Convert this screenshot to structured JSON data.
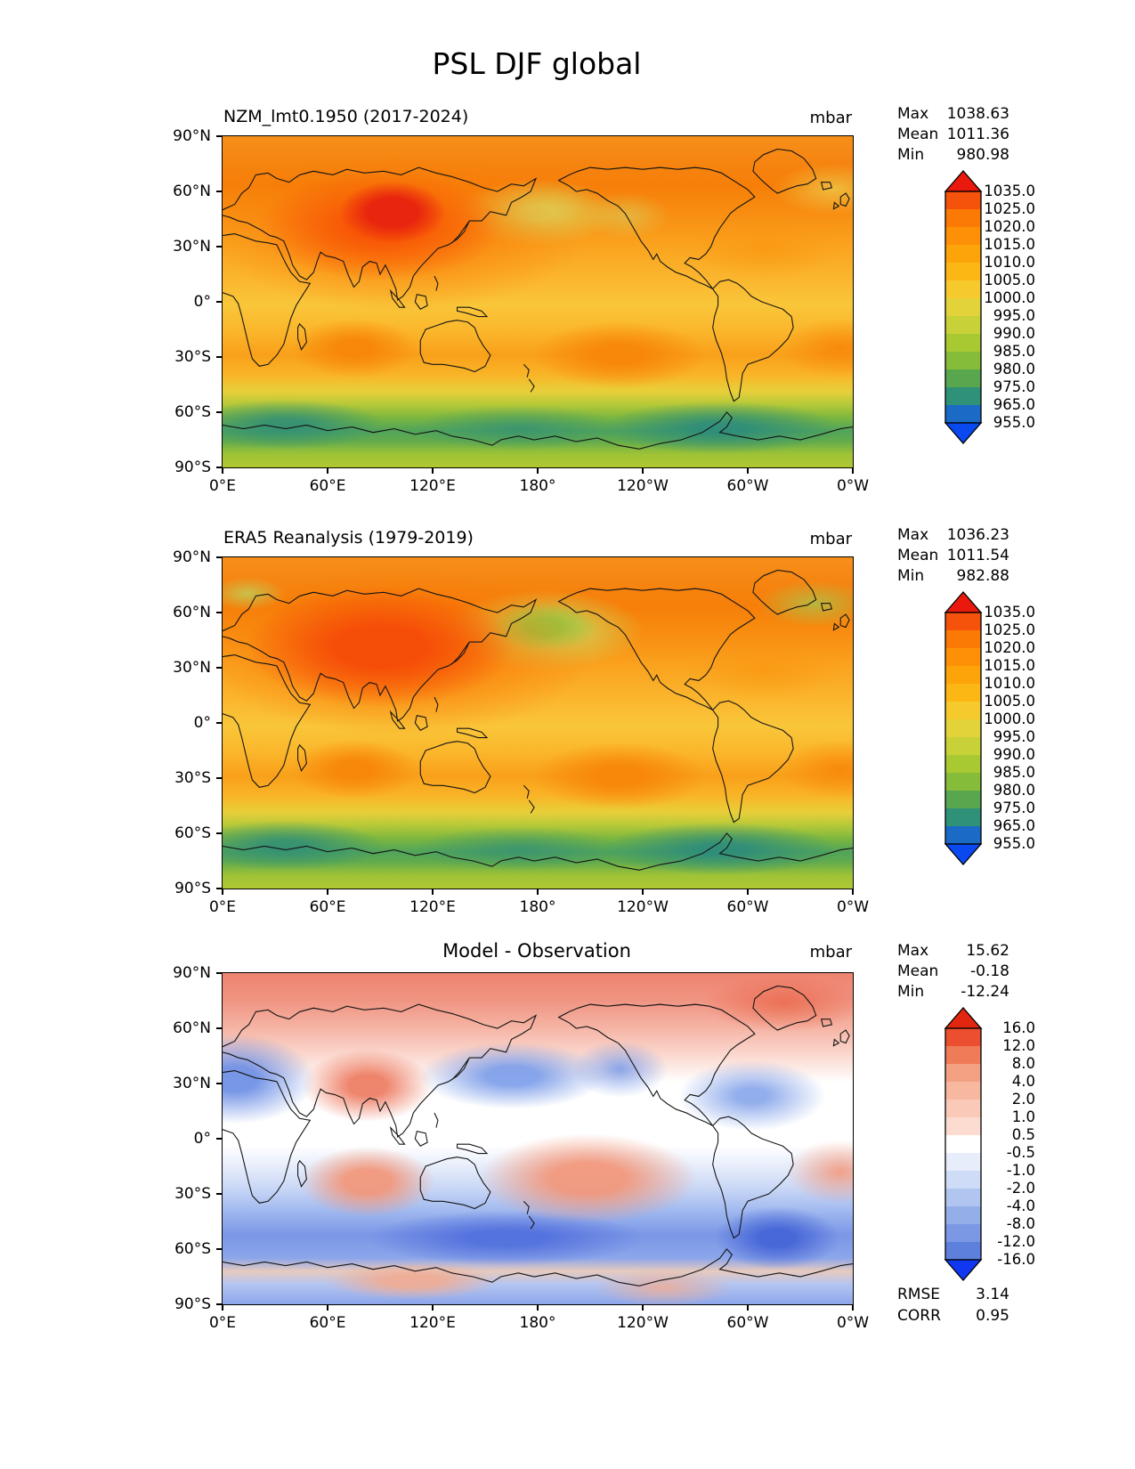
{
  "figure": {
    "title": "PSL DJF global"
  },
  "axis": {
    "x_ticks": [
      "0°E",
      "60°E",
      "120°E",
      "180°",
      "120°W",
      "60°W",
      "0°W"
    ],
    "y_ticks": [
      "90°N",
      "60°N",
      "30°N",
      "0°",
      "30°S",
      "60°S",
      "90°S"
    ]
  },
  "panels": [
    {
      "title": "NZM_lmt0.1950 (2017-2024)",
      "units": "mbar",
      "stats": [
        {
          "label": "Max",
          "value": "1038.63"
        },
        {
          "label": "Mean",
          "value": "1011.36"
        },
        {
          "label": "Min",
          "value": "980.98"
        }
      ],
      "colorbar": {
        "levels": [
          "1035.0",
          "1025.0",
          "1020.0",
          "1015.0",
          "1010.0",
          "1005.0",
          "1000.0",
          "995.0",
          "990.0",
          "985.0",
          "980.0",
          "975.0",
          "965.0",
          "955.0"
        ],
        "colors": [
          "#e9190d",
          "#f5520c",
          "#fb7a06",
          "#fd9006",
          "#fda40a",
          "#fdb714",
          "#f6ca2c",
          "#e2d33a",
          "#c8d138",
          "#a9c933",
          "#85bc3a",
          "#58a74f",
          "#2f9178",
          "#1b6ac6",
          "#0a48f0"
        ]
      }
    },
    {
      "title": "ERA5 Reanalysis (1979-2019)",
      "units": "mbar",
      "stats": [
        {
          "label": "Max",
          "value": "1036.23"
        },
        {
          "label": "Mean",
          "value": "1011.54"
        },
        {
          "label": "Min",
          "value": "982.88"
        }
      ],
      "colorbar": {
        "levels": [
          "1035.0",
          "1025.0",
          "1020.0",
          "1015.0",
          "1010.0",
          "1005.0",
          "1000.0",
          "995.0",
          "990.0",
          "985.0",
          "980.0",
          "975.0",
          "965.0",
          "955.0"
        ],
        "colors": [
          "#e9190d",
          "#f5520c",
          "#fb7a06",
          "#fd9006",
          "#fda40a",
          "#fdb714",
          "#f6ca2c",
          "#e2d33a",
          "#c8d138",
          "#a9c933",
          "#85bc3a",
          "#58a74f",
          "#2f9178",
          "#1b6ac6",
          "#0a48f0"
        ]
      }
    },
    {
      "title": "Model - Observation",
      "units": "mbar",
      "stats": [
        {
          "label": "Max",
          "value": "15.62"
        },
        {
          "label": "Mean",
          "value": "-0.18"
        },
        {
          "label": "Min",
          "value": "-12.24"
        }
      ],
      "colorbar": {
        "levels": [
          "16.0",
          "12.0",
          "8.0",
          "4.0",
          "2.0",
          "1.0",
          "0.5",
          "-0.5",
          "-1.0",
          "-2.0",
          "-4.0",
          "-8.0",
          "-12.0",
          "-16.0"
        ],
        "colors": [
          "#e3260f",
          "#eb4f30",
          "#f07b58",
          "#f4a183",
          "#f7b89f",
          "#fac9b8",
          "#fcdcd1",
          "#ffffff",
          "#e7edfb",
          "#cfdcf7",
          "#b1c5f1",
          "#94aeea",
          "#7a98e3",
          "#5d80dc",
          "#1038f0"
        ]
      },
      "metrics": [
        {
          "label": "RMSE",
          "value": "3.14"
        },
        {
          "label": "CORR",
          "value": "0.95"
        }
      ]
    }
  ],
  "chart_data": {
    "type": "heatmap",
    "title": "PSL DJF global",
    "units": "mbar",
    "x_axis": {
      "ticks": [
        "0°E",
        "60°E",
        "120°E",
        "180°",
        "120°W",
        "60°W",
        "0°W"
      ],
      "range_deg": [
        0,
        360
      ]
    },
    "y_axis": {
      "ticks": [
        "90°N",
        "60°N",
        "30°N",
        "0°",
        "30°S",
        "60°S",
        "90°S"
      ],
      "range_deg": [
        -90,
        90
      ]
    },
    "maps": [
      {
        "title": "NZM_lmt0.1950 (2017-2024)",
        "units": "mbar",
        "max": 1038.63,
        "mean": 1011.36,
        "min": 980.98,
        "contour_levels": [
          1035,
          1025,
          1020,
          1015,
          1010,
          1005,
          1000,
          995,
          990,
          985,
          980,
          975,
          965,
          955
        ],
        "features": [
          "red high >= 1035 mbar over central Asia (Siberian High)",
          "yellow-green ~1000 mbar Aleutian Low near 180°, 50°N",
          "orange ~1025 mbar subtropical highs near 30°S",
          "green/teal <= 985 mbar circumpolar trough 55°S-70°S",
          "yellow-green ~995-1000 mbar over Antarctica"
        ]
      },
      {
        "title": "ERA5 Reanalysis (1979-2019)",
        "units": "mbar",
        "max": 1036.23,
        "mean": 1011.54,
        "min": 982.88,
        "contour_levels": [
          1035,
          1025,
          1020,
          1015,
          1010,
          1005,
          1000,
          995,
          990,
          985,
          980,
          975,
          965,
          955
        ],
        "features": [
          "orange-red ~1030 mbar Siberian High",
          "green ~995 mbar Aleutian Low near 180°, 50°N",
          "green-yellow lows near Scandinavia and Greenland",
          "orange ~1025 mbar subtropical highs near 30°S",
          "green/teal <= 985 mbar circumpolar trough 55°S-70°S"
        ]
      },
      {
        "title": "Model - Observation",
        "units": "mbar",
        "max": 15.62,
        "mean": -0.18,
        "min": -12.24,
        "rmse": 3.14,
        "corr": 0.95,
        "contour_levels": [
          16,
          12,
          8,
          4,
          2,
          1,
          0.5,
          -0.5,
          -1,
          -2,
          -4,
          -8,
          -12,
          -16
        ],
        "features": [
          "positive bias (red) over Arctic, central Asia and subtropical southern oceans",
          "negative bias (blue) over Europe/North Atlantic, North Pacific, both North American coasts",
          "strong negative bias (blue) band over Southern Ocean 45°S-70°S",
          "near-zero (white) band across the tropics"
        ]
      }
    ]
  }
}
